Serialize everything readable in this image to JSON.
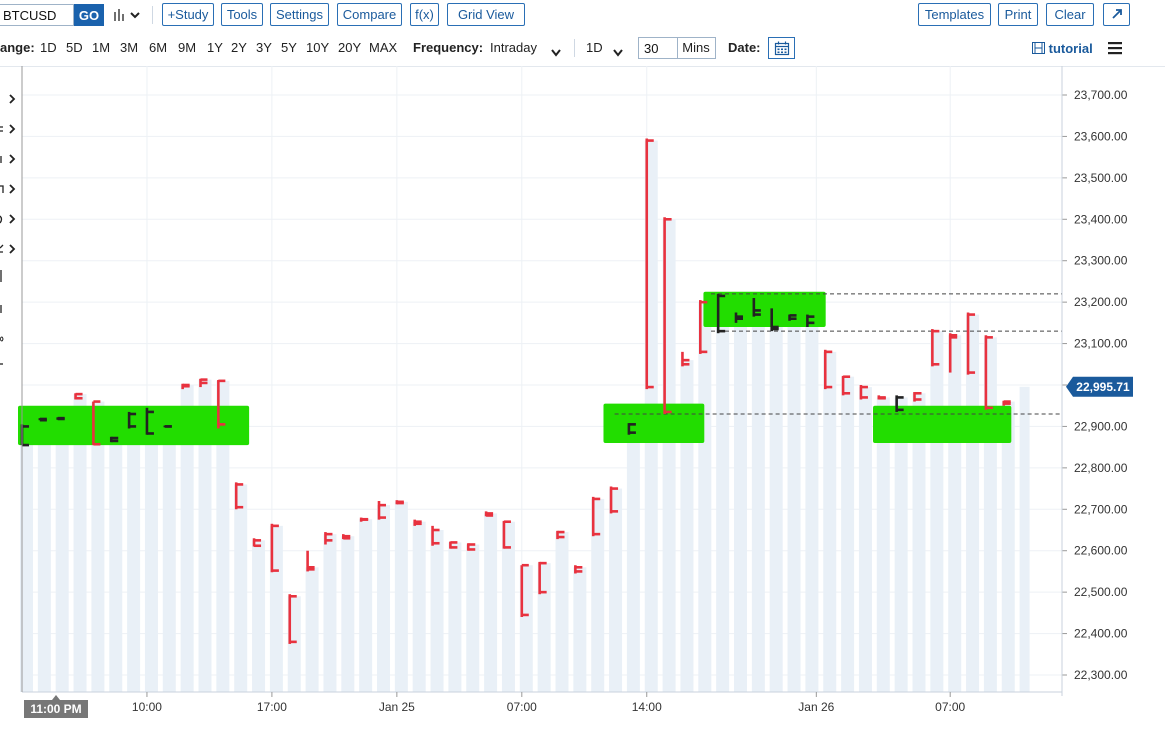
{
  "toolbar": {
    "symbol_value": "BTCUSD",
    "go_label": "GO",
    "chart_type_icon": "bar-chart-icon",
    "buttons": [
      "+Study",
      "Tools",
      "Settings",
      "Compare",
      "f(x)",
      "Grid View"
    ],
    "right_buttons": [
      "Templates",
      "Print",
      "Clear"
    ],
    "expand_icon": "expand-icon"
  },
  "timebar": {
    "range_label": "ange:",
    "range_options": [
      "1D",
      "5D",
      "1M",
      "3M",
      "6M",
      "9M",
      "1Y",
      "2Y",
      "3Y",
      "5Y",
      "10Y",
      "20Y",
      "MAX"
    ],
    "frequency_label": "Frequency:",
    "frequency_value": "Intraday",
    "period_value": "1D",
    "interval_value": "30",
    "interval_unit": "Mins",
    "date_label": "Date:",
    "calendar_icon": "calendar-icon",
    "tutorial_icon": "film-icon",
    "tutorial_label": "tutorial",
    "menu_icon": "hamburger-icon"
  },
  "drawer": {
    "arrow_icon": "chevron-right-icon",
    "fragments": [
      "c",
      "t",
      "n",
      "o",
      "c"
    ]
  },
  "colors": {
    "down_bar": "#e8323f",
    "up_bar": "#222222",
    "highlight": "#22dd00",
    "price_badge": "#1a5a9c",
    "volume_bar": "#e9f0f7"
  },
  "chart_data": {
    "type": "bar",
    "style": "ohlc",
    "symbol": "BTCUSD",
    "interval": "30 Mins",
    "ylim": [
      22250,
      23750
    ],
    "y_ticks": [
      "23,700.00",
      "23,600.00",
      "23,500.00",
      "23,400.00",
      "23,300.00",
      "23,200.00",
      "23,100.00",
      "23,000.00",
      "22,900.00",
      "22,800.00",
      "22,700.00",
      "22,600.00",
      "22,500.00",
      "22,400.00",
      "22,300.00"
    ],
    "x_labels": [
      "10:00",
      "17:00",
      "Jan 25",
      "07:00",
      "14:00",
      "Jan 26",
      "07:00"
    ],
    "cursor_label": "11:00 PM",
    "last_price": "22,995.71",
    "dashed_levels": [
      23220,
      23130,
      22930
    ],
    "grid": true,
    "bars": [
      {
        "o": 22855,
        "h": 22905,
        "l": 22855,
        "c": 22900,
        "d": "up"
      },
      {
        "o": 22915,
        "h": 22920,
        "l": 22915,
        "c": 22918,
        "d": "up"
      },
      {
        "o": 22918,
        "h": 22922,
        "l": 22916,
        "c": 22920,
        "d": "up"
      },
      {
        "o": 22978,
        "h": 22980,
        "l": 22965,
        "c": 22968,
        "d": "down"
      },
      {
        "o": 22960,
        "h": 22960,
        "l": 22855,
        "c": 22857,
        "d": "down"
      },
      {
        "o": 22865,
        "h": 22875,
        "l": 22862,
        "c": 22872,
        "d": "up"
      },
      {
        "o": 22900,
        "h": 22935,
        "l": 22895,
        "c": 22930,
        "d": "up"
      },
      {
        "o": 22935,
        "h": 22945,
        "l": 22880,
        "c": 22883,
        "d": "up"
      },
      {
        "o": 22900,
        "h": 22902,
        "l": 22898,
        "c": 22900,
        "d": "up"
      },
      {
        "o": 23000,
        "h": 23003,
        "l": 22990,
        "c": 22997,
        "d": "down"
      },
      {
        "o": 23013,
        "h": 23015,
        "l": 22995,
        "c": 23005,
        "d": "down"
      },
      {
        "o": 23010,
        "h": 23012,
        "l": 22895,
        "c": 22905,
        "d": "down"
      },
      {
        "o": 22760,
        "h": 22765,
        "l": 22700,
        "c": 22705,
        "d": "down"
      },
      {
        "o": 22625,
        "h": 22630,
        "l": 22610,
        "c": 22612,
        "d": "down"
      },
      {
        "o": 22660,
        "h": 22665,
        "l": 22548,
        "c": 22552,
        "d": "down"
      },
      {
        "o": 22490,
        "h": 22495,
        "l": 22375,
        "c": 22380,
        "d": "down"
      },
      {
        "o": 22560,
        "h": 22600,
        "l": 22550,
        "c": 22555,
        "d": "down"
      },
      {
        "o": 22640,
        "h": 22645,
        "l": 22615,
        "c": 22625,
        "d": "down"
      },
      {
        "o": 22635,
        "h": 22640,
        "l": 22628,
        "c": 22630,
        "d": "down"
      },
      {
        "o": 22675,
        "h": 22680,
        "l": 22670,
        "c": 22676,
        "d": "down"
      },
      {
        "o": 22710,
        "h": 22720,
        "l": 22675,
        "c": 22680,
        "d": "down"
      },
      {
        "o": 22718,
        "h": 22722,
        "l": 22712,
        "c": 22715,
        "d": "down"
      },
      {
        "o": 22670,
        "h": 22675,
        "l": 22660,
        "c": 22665,
        "d": "down"
      },
      {
        "o": 22650,
        "h": 22660,
        "l": 22612,
        "c": 22618,
        "d": "down"
      },
      {
        "o": 22620,
        "h": 22622,
        "l": 22605,
        "c": 22608,
        "d": "down"
      },
      {
        "o": 22615,
        "h": 22618,
        "l": 22600,
        "c": 22603,
        "d": "down"
      },
      {
        "o": 22690,
        "h": 22695,
        "l": 22683,
        "c": 22685,
        "d": "down"
      },
      {
        "o": 22670,
        "h": 22672,
        "l": 22605,
        "c": 22608,
        "d": "down"
      },
      {
        "o": 22565,
        "h": 22565,
        "l": 22440,
        "c": 22445,
        "d": "down"
      },
      {
        "o": 22570,
        "h": 22573,
        "l": 22495,
        "c": 22500,
        "d": "down"
      },
      {
        "o": 22645,
        "h": 22648,
        "l": 22628,
        "c": 22633,
        "d": "down"
      },
      {
        "o": 22560,
        "h": 22565,
        "l": 22545,
        "c": 22550,
        "d": "down"
      },
      {
        "o": 22725,
        "h": 22730,
        "l": 22635,
        "c": 22640,
        "d": "down"
      },
      {
        "o": 22750,
        "h": 22755,
        "l": 22690,
        "c": 22695,
        "d": "down"
      },
      {
        "o": 22905,
        "h": 22908,
        "l": 22880,
        "c": 22885,
        "d": "up"
      },
      {
        "o": 23590,
        "h": 23595,
        "l": 22990,
        "c": 22995,
        "d": "down"
      },
      {
        "o": 23400,
        "h": 23405,
        "l": 22930,
        "c": 22935,
        "d": "down"
      },
      {
        "o": 23060,
        "h": 23080,
        "l": 23045,
        "c": 23050,
        "d": "down"
      },
      {
        "o": 23200,
        "h": 23205,
        "l": 23075,
        "c": 23080,
        "d": "down"
      },
      {
        "o": 23130,
        "h": 23220,
        "l": 23125,
        "c": 23215,
        "d": "up"
      },
      {
        "o": 23160,
        "h": 23175,
        "l": 23150,
        "c": 23165,
        "d": "up"
      },
      {
        "o": 23170,
        "h": 23210,
        "l": 23165,
        "c": 23180,
        "d": "up"
      },
      {
        "o": 23135,
        "h": 23185,
        "l": 23130,
        "c": 23140,
        "d": "up"
      },
      {
        "o": 23160,
        "h": 23170,
        "l": 23155,
        "c": 23168,
        "d": "up"
      },
      {
        "o": 23165,
        "h": 23170,
        "l": 23140,
        "c": 23150,
        "d": "up"
      },
      {
        "o": 23080,
        "h": 23085,
        "l": 22990,
        "c": 22995,
        "d": "down"
      },
      {
        "o": 23020,
        "h": 23022,
        "l": 22975,
        "c": 22980,
        "d": "down"
      },
      {
        "o": 22995,
        "h": 23000,
        "l": 22965,
        "c": 22970,
        "d": "down"
      },
      {
        "o": 22970,
        "h": 22975,
        "l": 22965,
        "c": 22968,
        "d": "down"
      },
      {
        "o": 22940,
        "h": 22975,
        "l": 22935,
        "c": 22970,
        "d": "up"
      },
      {
        "o": 22980,
        "h": 22983,
        "l": 22960,
        "c": 22965,
        "d": "down"
      },
      {
        "o": 23130,
        "h": 23135,
        "l": 23045,
        "c": 23050,
        "d": "down"
      },
      {
        "o": 23120,
        "h": 23125,
        "l": 23030,
        "c": 23115,
        "d": "down"
      },
      {
        "o": 23170,
        "h": 23175,
        "l": 23025,
        "c": 23030,
        "d": "down"
      },
      {
        "o": 23115,
        "h": 23120,
        "l": 22940,
        "c": 22945,
        "d": "down"
      },
      {
        "o": 22960,
        "h": 22962,
        "l": 22950,
        "c": 22955,
        "d": "down"
      }
    ],
    "highlights": [
      {
        "x_from": 0,
        "x_to": 12.5,
        "y_from": 22855,
        "y_to": 22950
      },
      {
        "x_from": 32.8,
        "x_to": 38.0,
        "y_from": 22860,
        "y_to": 22955
      },
      {
        "x_from": 38.4,
        "x_to": 44.8,
        "y_from": 23140,
        "y_to": 23225
      },
      {
        "x_from": 47.9,
        "x_to": 55.2,
        "y_from": 22860,
        "y_to": 22950
      }
    ]
  }
}
